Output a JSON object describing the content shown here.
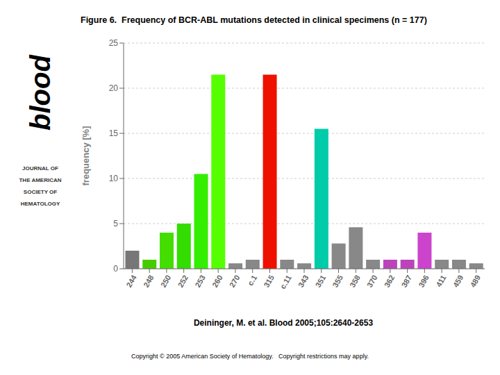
{
  "chart_data": {
    "type": "bar",
    "title": "Figure 6.  Frequency of BCR-ABL mutations detected in clinical specimens (n = 177)",
    "ylabel": "frequency [%]",
    "categories": [
      "244",
      "248",
      "250",
      "252",
      "253",
      "260",
      "270",
      "c.1",
      "315",
      "c.11",
      "343",
      "351",
      "355",
      "358",
      "370",
      "362",
      "387",
      "396",
      "411",
      "459",
      "489"
    ],
    "values": [
      2.0,
      1.0,
      4.0,
      5.0,
      10.5,
      21.5,
      0.6,
      1.0,
      21.5,
      1.0,
      0.6,
      15.5,
      2.8,
      4.6,
      1.0,
      1.0,
      1.0,
      4.0,
      1.0,
      1.0,
      0.6
    ],
    "colors": [
      "#777777",
      "#44cc00",
      "#44dd00",
      "#33dd00",
      "#33ee00",
      "#55ff00",
      "#888888",
      "#888888",
      "#ee1100",
      "#888888",
      "#888888",
      "#00ccaa",
      "#888888",
      "#888888",
      "#888888",
      "#bb44bb",
      "#bb44bb",
      "#cc44cc",
      "#888888",
      "#888888",
      "#888888"
    ],
    "ylim": [
      0,
      25
    ],
    "yticks": [
      0,
      5,
      10,
      15,
      20,
      25
    ],
    "grid": true,
    "annotations": [
      "Deininger, M. et al. Blood 2005;105:2640-2653",
      "Copyright © 2005 American Society of Hematology.   Copyright restrictions may apply.",
      "blood",
      "JOURNAL OF",
      "THE AMERICAN",
      "SOCIETY OF",
      "HEMATOLOGY"
    ]
  }
}
